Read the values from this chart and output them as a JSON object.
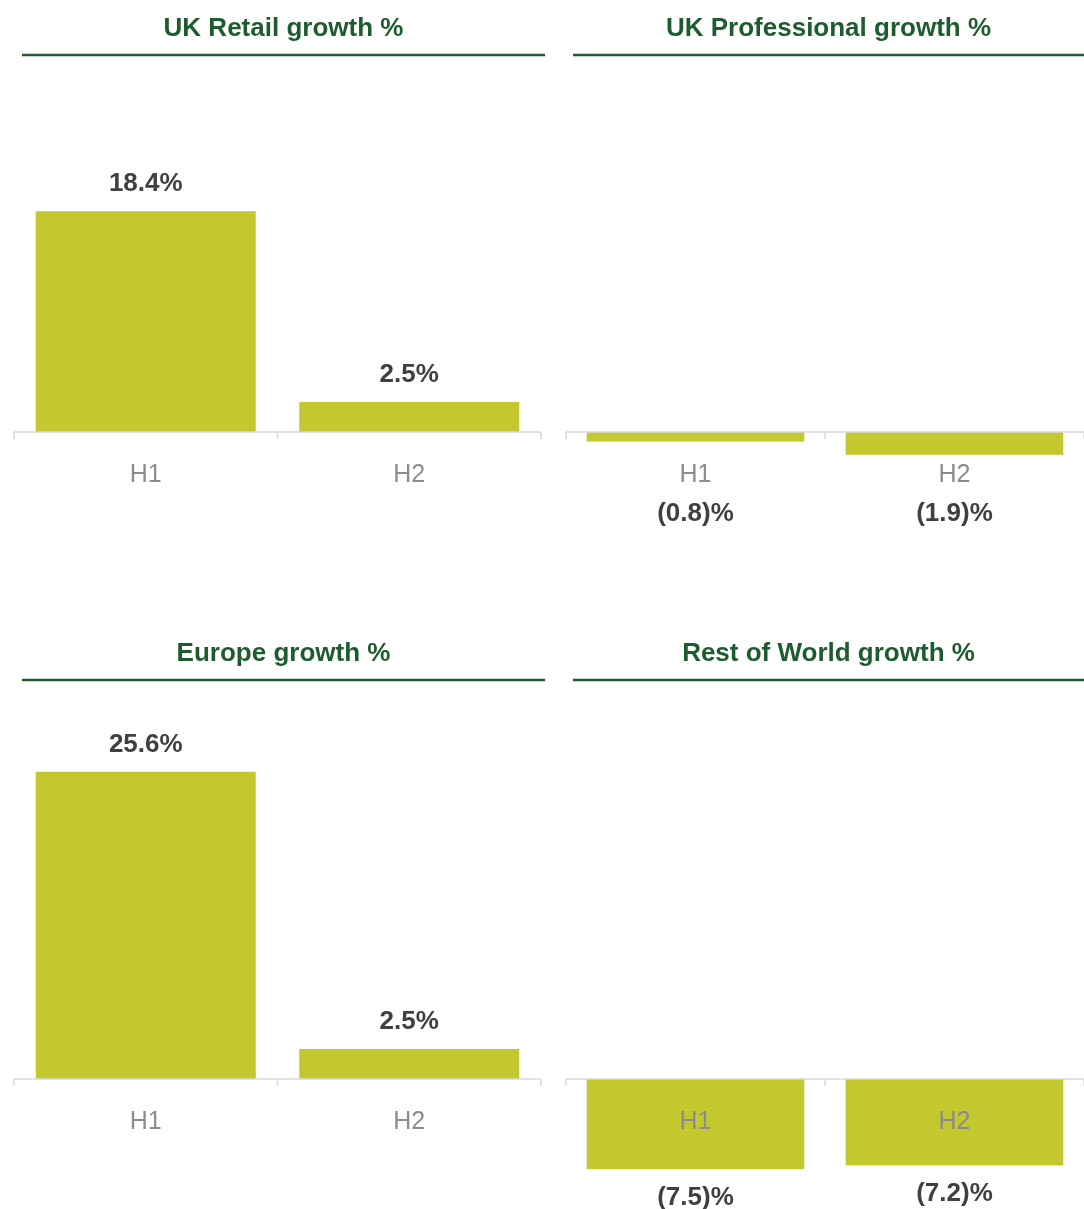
{
  "chart_data": [
    {
      "type": "bar",
      "title": "UK Retail growth %",
      "categories": [
        "H1",
        "H2"
      ],
      "values": [
        18.4,
        2.5
      ],
      "color": "#c4c82f",
      "value_labels": [
        "18.4%",
        "2.5%"
      ]
    },
    {
      "type": "bar",
      "title": "UK Professional growth %",
      "categories": [
        "H1",
        "H2"
      ],
      "values": [
        -0.8,
        -1.9
      ],
      "color": "#c4c82f",
      "value_labels": [
        "(0.8)%",
        "(1.9)%"
      ]
    },
    {
      "type": "bar",
      "title": "Europe growth %",
      "categories": [
        "H1",
        "H2"
      ],
      "values": [
        25.6,
        2.5
      ],
      "color": "#c4c82f",
      "value_labels": [
        "25.6%",
        "2.5%"
      ]
    },
    {
      "type": "bar",
      "title": "Rest of World growth %",
      "categories": [
        "H1",
        "H2"
      ],
      "values": [
        -7.5,
        -7.2
      ],
      "color": "#c4c82f",
      "value_labels": [
        "(7.5)%",
        "(7.2)%"
      ]
    }
  ]
}
